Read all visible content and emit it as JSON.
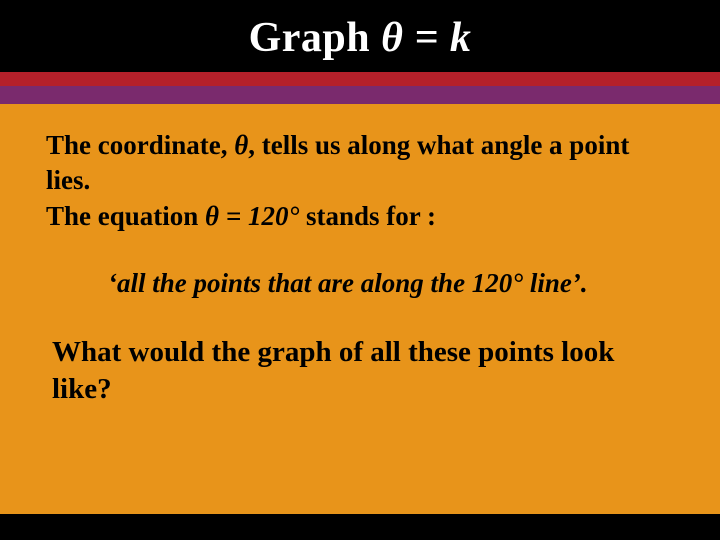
{
  "slide": {
    "background_color": "#e8941a",
    "header_background": "#000000",
    "stripe_colors": {
      "red": "#b5202a",
      "purple": "#7a2a6d"
    },
    "footer_background": "#000000",
    "title": {
      "prefix": "Graph ",
      "theta": "θ",
      "eq": " = k",
      "color": "#ffffff",
      "fontsize": 42,
      "weight": "bold"
    },
    "para1": {
      "pre": "The coordinate, ",
      "theta": "θ",
      "post": ", tells us along what angle a point lies."
    },
    "para2": {
      "pre": "The equation ",
      "theta": "θ",
      "eq": " = 120°",
      "post": " stands for :"
    },
    "quote": "‘all the points that are along the 120° line’.",
    "question": "What would the graph of all these points look like?",
    "body_fontsize": 27,
    "question_fontsize": 29,
    "text_color": "#000000"
  }
}
